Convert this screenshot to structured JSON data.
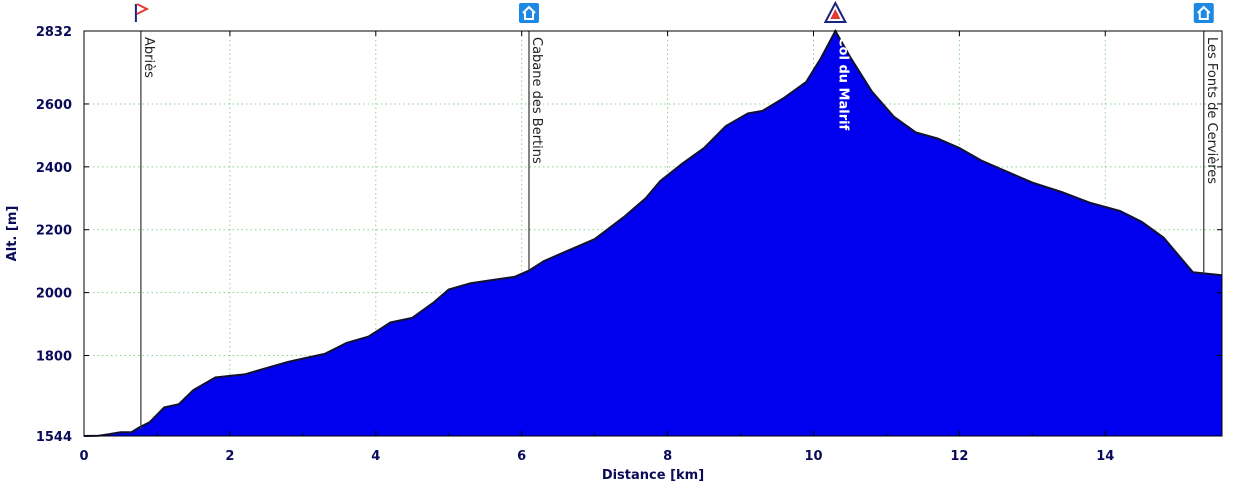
{
  "chart_data": {
    "type": "area",
    "xlabel": "Distance [km]",
    "ylabel": "Alt. [m]",
    "xlim": [
      0,
      15.6
    ],
    "ylim": [
      1544,
      2832
    ],
    "x_ticks": [
      0,
      2,
      4,
      6,
      8,
      10,
      12,
      14
    ],
    "y_ticks": [
      1544,
      1800,
      2000,
      2200,
      2400,
      2600,
      2832
    ],
    "grid": true,
    "colors": {
      "fill": "#0000ee",
      "outline": "#111133",
      "grid": "#8fcf8f",
      "axis_text": "#0b0b5a"
    },
    "profile": {
      "x": [
        0,
        0.2,
        0.35,
        0.5,
        0.65,
        0.75,
        0.9,
        1.1,
        1.3,
        1.5,
        1.8,
        2.0,
        2.2,
        2.5,
        2.8,
        3.0,
        3.3,
        3.6,
        3.9,
        4.2,
        4.5,
        4.8,
        5.0,
        5.3,
        5.6,
        5.9,
        6.1,
        6.3,
        6.6,
        7.0,
        7.4,
        7.7,
        7.9,
        8.2,
        8.5,
        8.8,
        9.1,
        9.3,
        9.6,
        9.9,
        10.1,
        10.3,
        10.5,
        10.8,
        11.1,
        11.4,
        11.7,
        12.0,
        12.3,
        12.6,
        13.0,
        13.4,
        13.8,
        14.2,
        14.5,
        14.8,
        15.0,
        15.2,
        15.4,
        15.6
      ],
      "y": [
        1544,
        1545,
        1550,
        1556,
        1556,
        1570,
        1588,
        1635,
        1645,
        1690,
        1730,
        1735,
        1740,
        1760,
        1780,
        1790,
        1805,
        1840,
        1860,
        1905,
        1920,
        1970,
        2010,
        2030,
        2040,
        2050,
        2070,
        2100,
        2130,
        2170,
        2240,
        2300,
        2355,
        2410,
        2460,
        2530,
        2570,
        2578,
        2620,
        2670,
        2745,
        2832,
        2750,
        2640,
        2560,
        2510,
        2490,
        2460,
        2420,
        2390,
        2350,
        2320,
        2285,
        2260,
        2225,
        2175,
        2120,
        2065,
        2060,
        2055
      ]
    },
    "waypoints": [
      {
        "name": "Abriès",
        "x": 0.78,
        "alt": 1566,
        "icon": "flag-icon"
      },
      {
        "name": "Cabane des Bertins",
        "x": 6.1,
        "alt": 2070,
        "icon": "hut-icon"
      },
      {
        "name": "Col du Malrif",
        "x": 10.3,
        "alt": 2832,
        "icon": "pass-icon"
      },
      {
        "name": "Les Fonts de Cervières",
        "x": 15.35,
        "alt": 2060,
        "icon": "hut-icon"
      }
    ]
  }
}
